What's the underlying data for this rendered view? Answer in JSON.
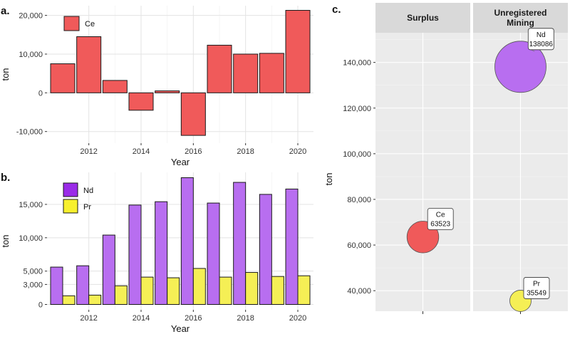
{
  "colors": {
    "ce": "#f05a5a",
    "nd": "#b86ef0",
    "pr": "#f5ef55",
    "nd_key": "#9a2be8",
    "pr_key": "#f7f02e",
    "bar_stroke": "#1a1a1a"
  },
  "chart_data": [
    {
      "id": "a",
      "panel_label": "a.",
      "type": "bar",
      "title": "",
      "xlabel": "Year",
      "ylabel": "ton",
      "x": [
        2011,
        2012,
        2013,
        2014,
        2015,
        2016,
        2017,
        2018,
        2019,
        2020
      ],
      "series": [
        {
          "name": "Ce",
          "values": [
            7500,
            14500,
            3200,
            -4500,
            500,
            -11000,
            12300,
            10000,
            10200,
            21300
          ]
        }
      ],
      "ylim": [
        -13000,
        22500
      ],
      "xlim": [
        2010.4,
        2020.6
      ],
      "y_ticks": [
        -10000,
        0,
        10000,
        20000
      ],
      "y_tick_labels": [
        "-10,000",
        "0",
        "10,000",
        "20,000"
      ],
      "x_ticks": [
        2012,
        2014,
        2016,
        2018,
        2020
      ],
      "x_tick_labels": [
        "2012",
        "2014",
        "2016",
        "2018",
        "2020"
      ],
      "legend": {
        "entries": [
          "Ce"
        ],
        "position": "top-left"
      }
    },
    {
      "id": "b",
      "panel_label": "b.",
      "type": "bar",
      "title": "",
      "xlabel": "Year",
      "ylabel": "ton",
      "x": [
        2011,
        2012,
        2013,
        2014,
        2015,
        2016,
        2017,
        2018,
        2019,
        2020
      ],
      "series": [
        {
          "name": "Nd",
          "values": [
            5600,
            5800,
            10400,
            14900,
            15400,
            19000,
            15200,
            18300,
            16500,
            17300
          ]
        },
        {
          "name": "Pr",
          "values": [
            1300,
            1400,
            2800,
            4100,
            4000,
            5400,
            4100,
            4800,
            4200,
            4300
          ]
        }
      ],
      "ylim": [
        -800,
        19800
      ],
      "xlim": [
        2010.4,
        2020.6
      ],
      "y_ticks": [
        0,
        3000,
        5000,
        10000,
        15000
      ],
      "y_tick_labels": [
        "0",
        "3,000",
        "5,000",
        "10,000",
        "15,000"
      ],
      "x_ticks": [
        2012,
        2014,
        2016,
        2018,
        2020
      ],
      "x_tick_labels": [
        "2012",
        "2014",
        "2016",
        "2018",
        "2020"
      ],
      "legend": {
        "entries": [
          "Nd",
          "Pr"
        ],
        "position": "top-left"
      }
    },
    {
      "id": "c",
      "panel_label": "c.",
      "type": "scatter",
      "title": "",
      "xlabel": "",
      "ylabel": "ton",
      "facets": [
        "Surplus",
        "Unregistered Mining"
      ],
      "points": [
        {
          "facet": "Surplus",
          "element": "Ce",
          "value": 63523,
          "label_name": "Ce",
          "label_value": "63523",
          "color_key": "ce"
        },
        {
          "facet": "Unregistered Mining",
          "element": "Nd",
          "value": 138086,
          "label_name": "Nd",
          "label_value": "138086",
          "color_key": "nd"
        },
        {
          "facet": "Unregistered Mining",
          "element": "Pr",
          "value": 35549,
          "label_name": "Pr",
          "label_value": "35549",
          "color_key": "pr"
        }
      ],
      "ylim": [
        31000,
        153000
      ],
      "y_ticks": [
        40000,
        60000,
        80000,
        100000,
        120000,
        140000
      ],
      "y_tick_labels": [
        "40,000",
        "60,000",
        "80,000",
        "100,000",
        "120,000",
        "140,000"
      ],
      "size_domain": [
        35549,
        138086
      ],
      "size_range": [
        15,
        36
      ]
    }
  ]
}
